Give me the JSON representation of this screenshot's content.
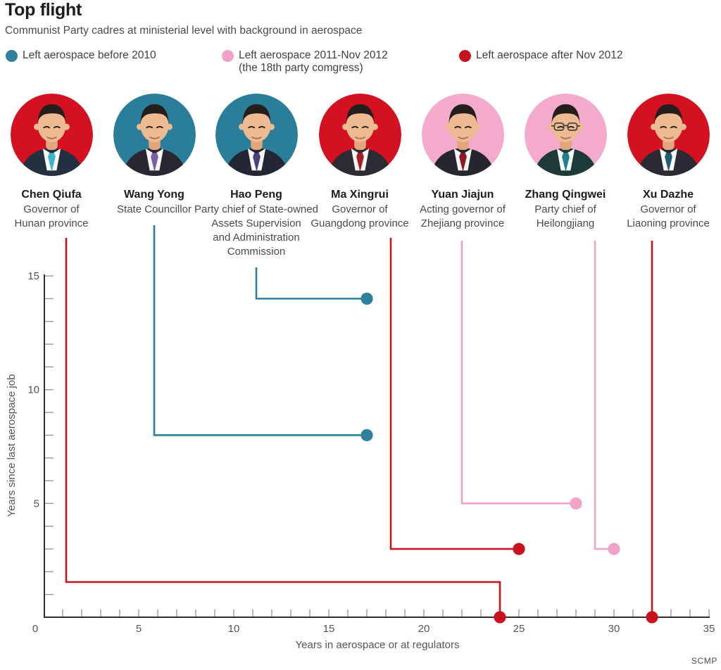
{
  "header": {
    "title": "Top flight",
    "subtitle": "Communist Party cadres at ministerial level with background in aerospace"
  },
  "legend": [
    {
      "key": "before-2010",
      "color": "#2e809c",
      "lines": [
        "Left aerospace before 2010"
      ]
    },
    {
      "key": "2011-nov-2012",
      "color": "#f1a3c6",
      "lines": [
        "Left aerospace 2011-Nov 2012",
        "(the 18th party comgress)"
      ]
    },
    {
      "key": "after-nov-2012",
      "color": "#c8121f",
      "lines": [
        "Left aerospace after Nov 2012"
      ]
    }
  ],
  "groups": {
    "before-2010": "#2e809c",
    "2011-nov-2012": "#f1a3c6",
    "after-nov-2012": "#c8121f"
  },
  "people": [
    {
      "name": "Chen Qiufa",
      "title_lines": [
        "Governor of",
        "Hunan province"
      ],
      "group": "after-nov-2012",
      "avatar": {
        "bg": "#d31120",
        "suit": "#233040",
        "tie": "#3fb3c9",
        "glasses": false
      }
    },
    {
      "name": "Wang Yong",
      "title_lines": [
        "State Councillor"
      ],
      "group": "before-2010",
      "avatar": {
        "bg": "#2a7e99",
        "suit": "#2a2733",
        "tie": "#7c5ea6",
        "glasses": false
      }
    },
    {
      "name": "Hao Peng",
      "title_lines": [
        "Party chief of State-owned",
        "Assets Supervision",
        "and Administration",
        "Commission"
      ],
      "group": "before-2010",
      "avatar": {
        "bg": "#2a7e99",
        "suit": "#232735",
        "tie": "#4a4080",
        "glasses": false
      }
    },
    {
      "name": "Ma Xingrui",
      "title_lines": [
        "Governor of",
        "Guangdong province"
      ],
      "group": "after-nov-2012",
      "avatar": {
        "bg": "#d31120",
        "suit": "#2b2b33",
        "tie": "#a81b24",
        "glasses": false
      }
    },
    {
      "name": "Yuan Jiajun",
      "title_lines": [
        "Acting governor of",
        "Zhejiang province"
      ],
      "group": "2011-nov-2012",
      "avatar": {
        "bg": "#f3aacb",
        "suit": "#26262e",
        "tie": "#8e1722",
        "glasses": false
      }
    },
    {
      "name": "Zhang Qingwei",
      "title_lines": [
        "Party chief of",
        "Heilongjiang"
      ],
      "group": "2011-nov-2012",
      "avatar": {
        "bg": "#f3aacb",
        "suit": "#1d3a38",
        "tie": "#1f7f8c",
        "glasses": true
      }
    },
    {
      "name": "Xu Dazhe",
      "title_lines": [
        "Governor of",
        "Liaoning province"
      ],
      "group": "after-nov-2012",
      "avatar": {
        "bg": "#d31120",
        "suit": "#2b2a34",
        "tie": "#1d5e75",
        "glasses": false
      }
    }
  ],
  "chart_data": {
    "type": "scatter",
    "title": "Top flight",
    "xlabel": "Years in aerospace or at regulators",
    "ylabel": "Years since last aerospace job",
    "xlim": [
      0,
      35
    ],
    "ylim": [
      0,
      15
    ],
    "x_tick_labels": [
      0,
      5,
      10,
      15,
      20,
      25,
      30,
      35
    ],
    "y_tick_labels": [
      5,
      10,
      15
    ],
    "grid": false,
    "legend_position": "top",
    "points": [
      {
        "name": "Chen Qiufa",
        "x": 24,
        "y": 0,
        "group": "after-nov-2012"
      },
      {
        "name": "Wang Yong",
        "x": 17,
        "y": 8,
        "group": "before-2010"
      },
      {
        "name": "Hao Peng",
        "x": 17,
        "y": 14,
        "group": "before-2010"
      },
      {
        "name": "Ma Xingrui",
        "x": 25,
        "y": 3,
        "group": "after-nov-2012"
      },
      {
        "name": "Yuan Jiajun",
        "x": 28,
        "y": 5,
        "group": "2011-nov-2012"
      },
      {
        "name": "Zhang Qingwei",
        "x": 30,
        "y": 3,
        "group": "2011-nov-2012"
      },
      {
        "name": "Xu Dazhe",
        "x": 32,
        "y": 0,
        "group": "after-nov-2012"
      }
    ]
  },
  "credit": "SCMP"
}
